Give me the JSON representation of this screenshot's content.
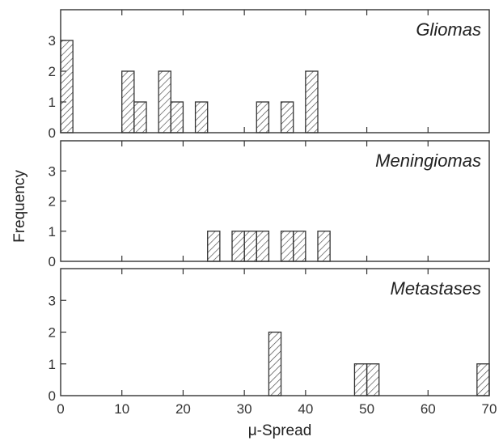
{
  "chart_data": [
    {
      "type": "bar",
      "title": "Gliomas",
      "xlabel": "μ-Spread",
      "ylabel": "Frequency",
      "xlim": [
        0,
        70
      ],
      "ylim": [
        0,
        4
      ],
      "x_ticks": [
        0,
        10,
        20,
        30,
        40,
        50,
        60,
        70
      ],
      "y_ticks": [
        0,
        1,
        2,
        3
      ],
      "bin_width": 2,
      "bars": [
        {
          "x": 1,
          "value": 3
        },
        {
          "x": 11,
          "value": 2
        },
        {
          "x": 13,
          "value": 1
        },
        {
          "x": 17,
          "value": 2
        },
        {
          "x": 19,
          "value": 1
        },
        {
          "x": 23,
          "value": 1
        },
        {
          "x": 33,
          "value": 1
        },
        {
          "x": 37,
          "value": 1
        },
        {
          "x": 41,
          "value": 2
        }
      ]
    },
    {
      "type": "bar",
      "title": "Meningiomas",
      "xlabel": "μ-Spread",
      "ylabel": "Frequency",
      "xlim": [
        0,
        70
      ],
      "ylim": [
        0,
        4
      ],
      "x_ticks": [
        0,
        10,
        20,
        30,
        40,
        50,
        60,
        70
      ],
      "y_ticks": [
        0,
        1,
        2,
        3
      ],
      "bin_width": 2,
      "bars": [
        {
          "x": 25,
          "value": 1
        },
        {
          "x": 29,
          "value": 1
        },
        {
          "x": 31,
          "value": 1
        },
        {
          "x": 33,
          "value": 1
        },
        {
          "x": 37,
          "value": 1
        },
        {
          "x": 39,
          "value": 1
        },
        {
          "x": 43,
          "value": 1
        }
      ]
    },
    {
      "type": "bar",
      "title": "Metastases",
      "xlabel": "μ-Spread",
      "ylabel": "Frequency",
      "xlim": [
        0,
        70
      ],
      "ylim": [
        0,
        4
      ],
      "x_ticks": [
        0,
        10,
        20,
        30,
        40,
        50,
        60,
        70
      ],
      "x_tick_labels": [
        "0",
        "10",
        "20",
        "30",
        "40",
        "50",
        "60",
        "70"
      ],
      "y_ticks": [
        0,
        1,
        2,
        3
      ],
      "bin_width": 2,
      "bars": [
        {
          "x": 35,
          "value": 2
        },
        {
          "x": 49,
          "value": 1
        },
        {
          "x": 51,
          "value": 1
        },
        {
          "x": 69,
          "value": 1
        }
      ]
    }
  ],
  "figure": {
    "ylabel": "Frequency",
    "xlabel": "μ-Spread",
    "bar_stroke": "#333333",
    "hatch_color": "#444444"
  }
}
